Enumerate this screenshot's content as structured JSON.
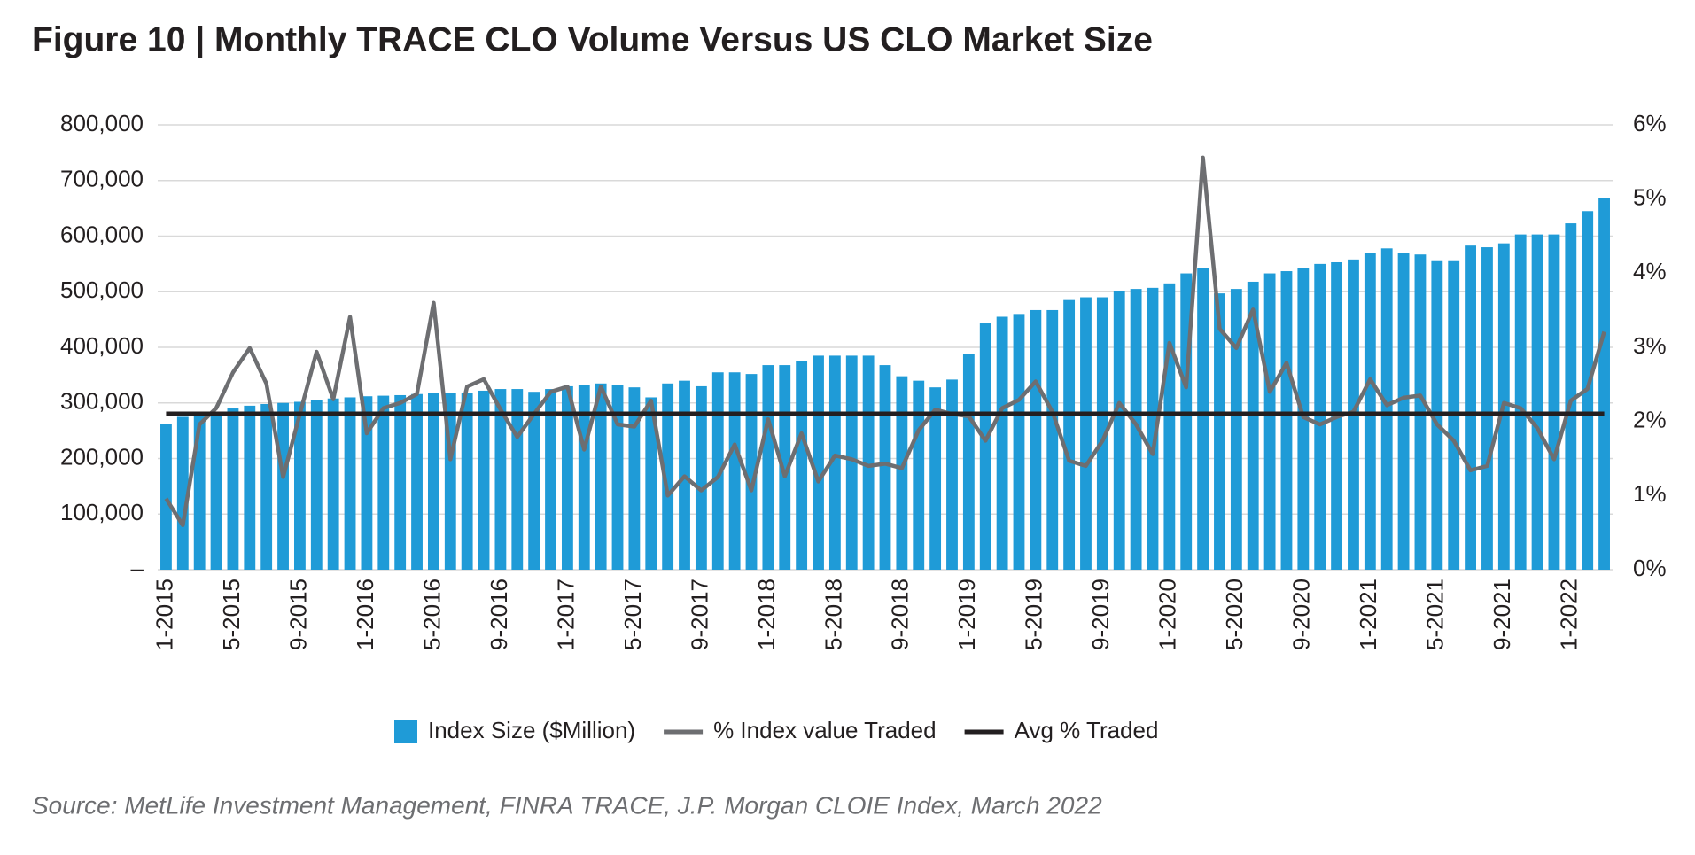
{
  "chart_data": {
    "type": "bar-line",
    "title": "Figure 10  |  Monthly TRACE CLO Volume Versus US CLO Market Size",
    "source": "Source: MetLife Investment Management, FINRA TRACE, J.P. Morgan CLOIE Index, March 2022",
    "categories": [
      "1-2015",
      null,
      null,
      null,
      "5-2015",
      null,
      null,
      null,
      "9-2015",
      null,
      null,
      null,
      "1-2016",
      null,
      null,
      null,
      "5-2016",
      null,
      null,
      null,
      "9-2016",
      null,
      null,
      null,
      "1-2017",
      null,
      null,
      null,
      "5-2017",
      null,
      null,
      null,
      "9-2017",
      null,
      null,
      null,
      "1-2018",
      null,
      null,
      null,
      "5-2018",
      null,
      null,
      null,
      "9-2018",
      null,
      null,
      null,
      "1-2019",
      null,
      null,
      null,
      "5-2019",
      null,
      null,
      null,
      "9-2019",
      null,
      null,
      null,
      "1-2020",
      null,
      null,
      null,
      "5-2020",
      null,
      null,
      null,
      "9-2020",
      null,
      null,
      null,
      "1-2021",
      null,
      null,
      null,
      "5-2021",
      null,
      null,
      null,
      "9-2021",
      null,
      null,
      null,
      "1-2022",
      null,
      null
    ],
    "series": [
      {
        "name": "Index Size ($Million)",
        "color": "#1f9bd7",
        "kind": "bar",
        "axis": "y",
        "values": [
          262000,
          275000,
          280000,
          283000,
          290000,
          295000,
          298000,
          300000,
          302000,
          305000,
          308000,
          310000,
          312000,
          313000,
          314000,
          316000,
          318000,
          318000,
          318000,
          322000,
          325000,
          325000,
          320000,
          325000,
          330000,
          332000,
          335000,
          332000,
          328000,
          310000,
          335000,
          340000,
          330000,
          355000,
          355000,
          352000,
          368000,
          368000,
          375000,
          385000,
          385000,
          385000,
          385000,
          368000,
          348000,
          340000,
          328000,
          342000,
          388000,
          443000,
          455000,
          460000,
          467000,
          467000,
          485000,
          490000,
          490000,
          502000,
          505000,
          507000,
          515000,
          533000,
          542000,
          497000,
          505000,
          518000,
          533000,
          537000,
          542000,
          550000,
          553000,
          558000,
          570000,
          578000,
          570000,
          567000,
          555000,
          555000,
          583000,
          580000,
          587000,
          603000,
          603000,
          603000,
          623000,
          645000,
          668000
        ]
      },
      {
        "name": "% Index value Traded",
        "color": "#6d6e71",
        "kind": "line",
        "axis": "y2",
        "values": [
          0.96,
          0.6,
          1.96,
          2.18,
          2.66,
          2.99,
          2.51,
          1.25,
          2.1,
          2.94,
          2.3,
          3.41,
          1.84,
          2.18,
          2.25,
          2.37,
          3.6,
          1.49,
          2.47,
          2.57,
          2.16,
          1.79,
          2.1,
          2.4,
          2.47,
          1.62,
          2.47,
          1.96,
          1.93,
          2.28,
          1.0,
          1.26,
          1.07,
          1.25,
          1.69,
          1.07,
          2.03,
          1.26,
          1.84,
          1.19,
          1.54,
          1.49,
          1.4,
          1.43,
          1.37,
          1.88,
          2.16,
          2.1,
          2.07,
          1.74,
          2.18,
          2.29,
          2.54,
          2.13,
          1.47,
          1.4,
          1.74,
          2.25,
          1.96,
          1.56,
          3.06,
          2.46,
          5.56,
          3.25,
          2.99,
          3.51,
          2.4,
          2.79,
          2.06,
          1.96,
          2.06,
          2.13,
          2.57,
          2.22,
          2.32,
          2.35,
          1.96,
          1.74,
          1.34,
          1.4,
          2.25,
          2.18,
          1.91,
          1.49,
          2.28,
          2.44,
          3.21
        ]
      },
      {
        "name": "Avg % Traded",
        "color": "#231f20",
        "kind": "line",
        "axis": "y2",
        "values": [
          2.1,
          2.1,
          2.1,
          2.1,
          2.1,
          2.1,
          2.1,
          2.1,
          2.1,
          2.1,
          2.1,
          2.1,
          2.1,
          2.1,
          2.1,
          2.1,
          2.1,
          2.1,
          2.1,
          2.1,
          2.1,
          2.1,
          2.1,
          2.1,
          2.1,
          2.1,
          2.1,
          2.1,
          2.1,
          2.1,
          2.1,
          2.1,
          2.1,
          2.1,
          2.1,
          2.1,
          2.1,
          2.1,
          2.1,
          2.1,
          2.1,
          2.1,
          2.1,
          2.1,
          2.1,
          2.1,
          2.1,
          2.1,
          2.1,
          2.1,
          2.1,
          2.1,
          2.1,
          2.1,
          2.1,
          2.1,
          2.1,
          2.1,
          2.1,
          2.1,
          2.1,
          2.1,
          2.1,
          2.1,
          2.1,
          2.1,
          2.1,
          2.1,
          2.1,
          2.1,
          2.1,
          2.1,
          2.1,
          2.1,
          2.1,
          2.1,
          2.1,
          2.1,
          2.1,
          2.1,
          2.1,
          2.1,
          2.1,
          2.1,
          2.1,
          2.1,
          2.1
        ]
      }
    ],
    "ylim": [
      0,
      800000
    ],
    "yticks": [
      {
        "value": 0,
        "label": "–"
      },
      {
        "value": 100000,
        "label": "100,000"
      },
      {
        "value": 200000,
        "label": "200,000"
      },
      {
        "value": 300000,
        "label": "300,000"
      },
      {
        "value": 400000,
        "label": "400,000"
      },
      {
        "value": 500000,
        "label": "500,000"
      },
      {
        "value": 600000,
        "label": "600,000"
      },
      {
        "value": 700000,
        "label": "700,000"
      },
      {
        "value": 800000,
        "label": "800,000"
      }
    ],
    "y2lim": [
      0,
      6
    ],
    "y2ticks": [
      {
        "value": 0,
        "label": "0%"
      },
      {
        "value": 1,
        "label": "1%"
      },
      {
        "value": 2,
        "label": "2%"
      },
      {
        "value": 3,
        "label": "3%"
      },
      {
        "value": 4,
        "label": "4%"
      },
      {
        "value": 5,
        "label": "5%"
      },
      {
        "value": 6,
        "label": "6%"
      }
    ],
    "grid": true,
    "legend": "bottom"
  }
}
